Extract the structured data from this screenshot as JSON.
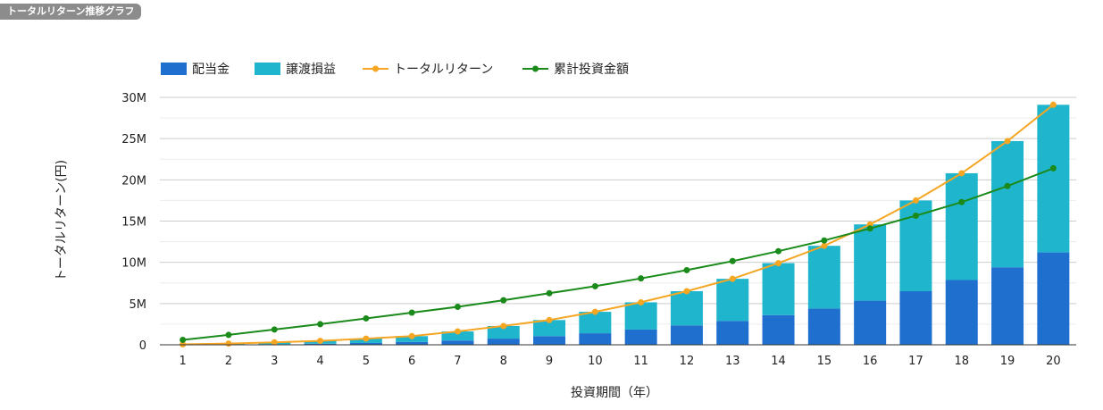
{
  "header": {
    "tag_label": "トータルリターン推移グラフ"
  },
  "chart_data": {
    "type": "bar",
    "stacked": true,
    "title": "",
    "xlabel": "投資期間（年）",
    "ylabel": "トータルリターン(円)",
    "categories": [
      "1",
      "2",
      "3",
      "4",
      "5",
      "6",
      "7",
      "8",
      "9",
      "10",
      "11",
      "12",
      "13",
      "14",
      "15",
      "16",
      "17",
      "18",
      "19",
      "20"
    ],
    "ylim": [
      0,
      30000000
    ],
    "yticks": [
      0,
      5000000,
      10000000,
      15000000,
      20000000,
      25000000,
      30000000
    ],
    "ytick_labels": [
      "0",
      "5M",
      "10M",
      "15M",
      "20M",
      "25M",
      "30M"
    ],
    "legend_position": "top-left",
    "grid": true,
    "series": [
      {
        "name": "配当金",
        "kind": "bar",
        "color": "#1f6fcf",
        "values": [
          0,
          20000,
          60000,
          130000,
          220000,
          350000,
          520000,
          750000,
          1050000,
          1400000,
          1850000,
          2350000,
          2900000,
          3600000,
          4400000,
          5350000,
          6500000,
          7850000,
          9400000,
          11200000
        ]
      },
      {
        "name": "譲渡損益",
        "kind": "bar",
        "color": "#1fb5cc",
        "values": [
          50000,
          130000,
          240000,
          350000,
          530000,
          700000,
          1100000,
          1530000,
          1950000,
          2600000,
          3300000,
          4150000,
          5100000,
          6300000,
          7600000,
          9250000,
          11000000,
          12950000,
          15300000,
          17900000
        ]
      },
      {
        "name": "トータルリターン",
        "kind": "line",
        "color": "#f5a623",
        "values": [
          50000,
          150000,
          300000,
          480000,
          750000,
          1050000,
          1620000,
          2280000,
          3000000,
          4000000,
          5150000,
          6500000,
          8000000,
          9900000,
          12000000,
          14600000,
          17500000,
          20800000,
          24700000,
          29100000
        ]
      },
      {
        "name": "累計投資金額",
        "kind": "line",
        "color": "#1a8a1a",
        "values": [
          600000,
          1200000,
          1850000,
          2500000,
          3200000,
          3900000,
          4600000,
          5400000,
          6250000,
          7100000,
          8050000,
          9050000,
          10150000,
          11350000,
          12650000,
          14100000,
          15650000,
          17300000,
          19250000,
          21400000
        ]
      }
    ]
  }
}
